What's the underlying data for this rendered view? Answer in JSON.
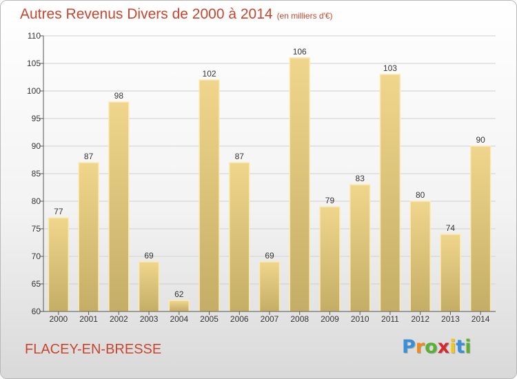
{
  "chart_data": {
    "type": "bar",
    "title": "Autres Revenus Divers de 2000 à 2014",
    "unit_note": "(en milliers d'€)",
    "categories": [
      "2000",
      "2001",
      "2002",
      "2003",
      "2004",
      "2005",
      "2006",
      "2007",
      "2008",
      "2009",
      "2010",
      "2011",
      "2012",
      "2013",
      "2014"
    ],
    "values": [
      77,
      87,
      98,
      69,
      62,
      102,
      87,
      69,
      106,
      79,
      83,
      103,
      80,
      74,
      90
    ],
    "ylim": [
      60,
      110
    ],
    "yticks": [
      60,
      65,
      70,
      75,
      80,
      85,
      90,
      95,
      100,
      105,
      110
    ],
    "grid": true,
    "bar_color": "#f0d68c",
    "bar_color_dark": "#c4ad66"
  },
  "footer": {
    "commune": "FLACEY-EN-BRESSE",
    "logo_letters": [
      "P",
      "r",
      "o",
      "x",
      "i",
      "t",
      "i"
    ],
    "logo_colors": [
      "#3a8fd6",
      "#f08a1c",
      "#5cb030",
      "#d7282f",
      "#f5c518",
      "#3a8fd6",
      "#5cb030"
    ]
  },
  "colors": {
    "title": "#c8452e",
    "axis": "#555555",
    "grid": "#cfcfcf"
  }
}
